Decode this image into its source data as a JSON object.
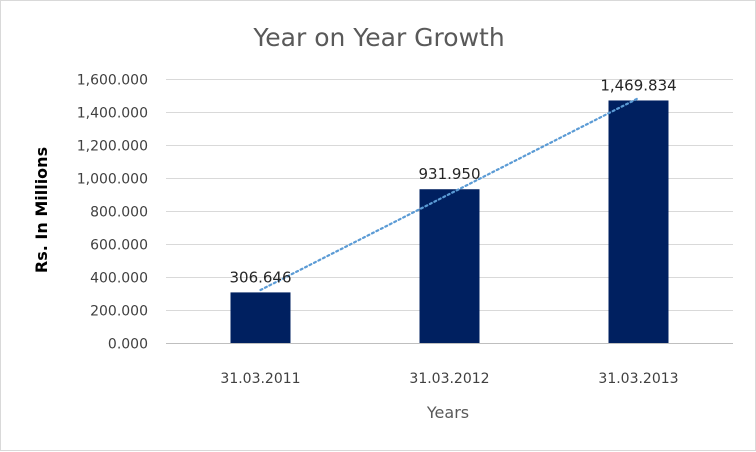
{
  "chart_data": {
    "type": "bar",
    "title": "Year on Year Growth",
    "xlabel": "Years",
    "ylabel": "Rs. In Millions",
    "categories": [
      "31.03.2011",
      "31.03.2012",
      "31.03.2013"
    ],
    "values": [
      306.646,
      931.95,
      1469.834
    ],
    "data_labels": [
      "306.646",
      "931.950",
      "1,469.834"
    ],
    "y_ticks": [
      0,
      200,
      400,
      600,
      800,
      1000,
      1200,
      1400,
      1600
    ],
    "y_tick_labels": [
      "0.000",
      "200.000",
      "400.000",
      "600.000",
      "800.000",
      "1,000.000",
      "1,200.000",
      "1,400.000",
      "1,600.000"
    ],
    "ylim": [
      0,
      1600
    ],
    "grid": true,
    "legend": "none",
    "trendline": {
      "type": "linear",
      "style": "dotted"
    },
    "colors": {
      "bar": "#002060",
      "trendline": "#5b9bd5"
    }
  }
}
